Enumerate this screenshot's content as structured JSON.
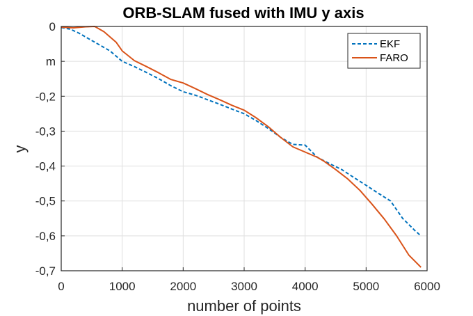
{
  "chart_data": {
    "type": "line",
    "title": "ORB-SLAM fused with IMU y axis",
    "xlabel": "number of points",
    "ylabel": "y",
    "xlim": [
      0,
      6000
    ],
    "ylim": [
      -0.7,
      0
    ],
    "xticks": [
      0,
      1000,
      2000,
      3000,
      4000,
      5000,
      6000
    ],
    "xtick_labels": [
      "0",
      "1000",
      "2000",
      "3000",
      "4000",
      "5000",
      "6000"
    ],
    "yticks": [
      0,
      -0.1,
      -0.2,
      -0.3,
      -0.4,
      -0.5,
      -0.6,
      -0.7
    ],
    "ytick_labels": [
      "0",
      "m",
      "-0,2",
      "-0,3",
      "-0,4",
      "-0,5",
      "-0,6",
      "-0,7"
    ],
    "grid": true,
    "legend_position": "top-right",
    "series": [
      {
        "name": "EKF",
        "color": "#0072BD",
        "style": "dashed",
        "x": [
          0,
          150,
          300,
          450,
          600,
          800,
          1000,
          1200,
          1400,
          1600,
          1800,
          2000,
          2200,
          2400,
          2600,
          2800,
          3000,
          3200,
          3400,
          3600,
          3800,
          4000,
          4200,
          4400,
          4600,
          4800,
          5000,
          5200,
          5400,
          5600,
          5800,
          5900
        ],
        "y": [
          -0.003,
          -0.008,
          -0.02,
          -0.035,
          -0.05,
          -0.07,
          -0.1,
          -0.115,
          -0.132,
          -0.15,
          -0.17,
          -0.187,
          -0.197,
          -0.21,
          -0.223,
          -0.237,
          -0.25,
          -0.27,
          -0.293,
          -0.318,
          -0.338,
          -0.34,
          -0.375,
          -0.393,
          -0.41,
          -0.433,
          -0.455,
          -0.478,
          -0.5,
          -0.55,
          -0.585,
          -0.6
        ]
      },
      {
        "name": "FARO",
        "color": "#D95319",
        "style": "solid",
        "x": [
          0,
          200,
          400,
          550,
          700,
          900,
          1000,
          1200,
          1400,
          1600,
          1800,
          2000,
          2200,
          2400,
          2600,
          2800,
          3000,
          3200,
          3400,
          3600,
          3800,
          4000,
          4200,
          4300,
          4500,
          4700,
          4900,
          5100,
          5300,
          5500,
          5700,
          5900
        ],
        "y": [
          -0.002,
          -0.004,
          -0.001,
          0,
          -0.015,
          -0.045,
          -0.07,
          -0.098,
          -0.115,
          -0.133,
          -0.152,
          -0.162,
          -0.178,
          -0.195,
          -0.21,
          -0.226,
          -0.24,
          -0.262,
          -0.288,
          -0.318,
          -0.345,
          -0.36,
          -0.375,
          -0.385,
          -0.41,
          -0.437,
          -0.47,
          -0.51,
          -0.552,
          -0.6,
          -0.655,
          -0.69
        ]
      }
    ]
  }
}
